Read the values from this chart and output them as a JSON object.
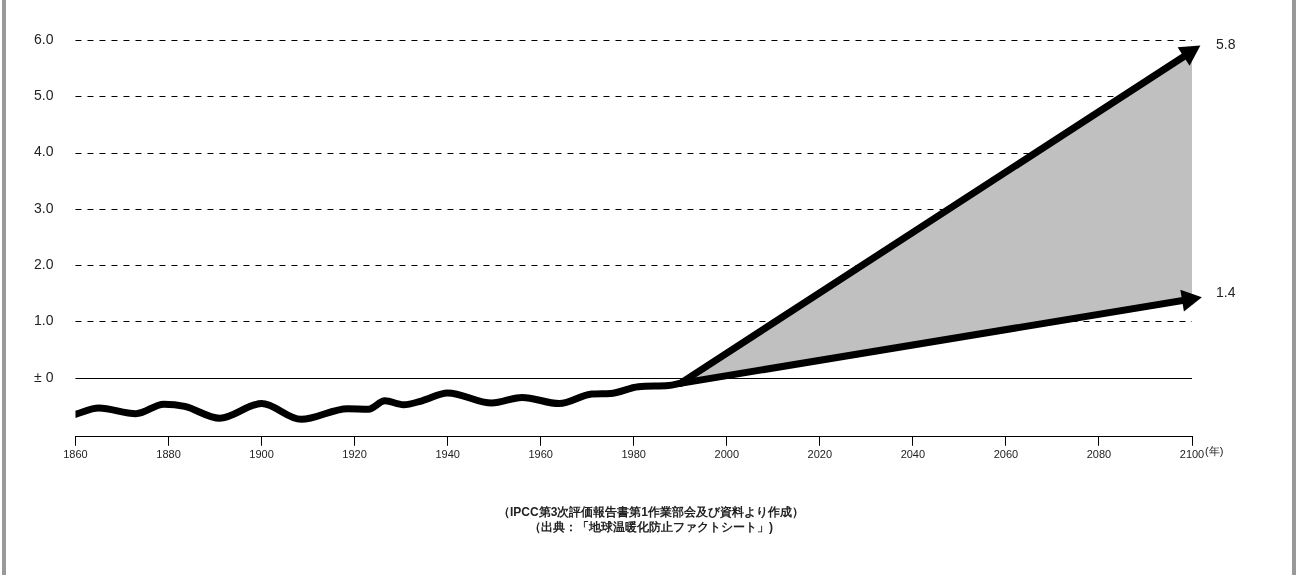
{
  "chart_data": {
    "type": "line",
    "annotations": [
      "（IPCC第3次評価報告書第1作業部会及び資料より作成）",
      "（出典：「地球温暖化防止ファクトシート」)"
    ],
    "xlabel": "(年)",
    "xlim": [
      1860,
      2100
    ],
    "xticks": [
      1860,
      1880,
      1900,
      1920,
      1940,
      1960,
      1980,
      2000,
      2020,
      2040,
      2060,
      2080,
      2100
    ],
    "ylim": [
      -1.05,
      6.0
    ],
    "yticks": [
      {
        "value": 0,
        "label": "± 0"
      },
      {
        "value": 1,
        "label": "1.0"
      },
      {
        "value": 2,
        "label": "2.0"
      },
      {
        "value": 3,
        "label": "3.0"
      },
      {
        "value": 4,
        "label": "4.0"
      },
      {
        "value": 5,
        "label": "5.0"
      },
      {
        "value": 6,
        "label": "6.0"
      }
    ],
    "grid": "y",
    "legend": false,
    "ref_lines": [
      {
        "axis": "y",
        "value": 0,
        "line_style": "solid",
        "color": "#000000"
      }
    ],
    "series": [
      {
        "color": "#000000",
        "x": [
          1860,
          1865,
          1873,
          1879,
          1883.5,
          1891,
          1900,
          1908.5,
          1918.5,
          1923,
          1926.5,
          1930.5,
          1934.5,
          1940,
          1949.5,
          1956,
          1964,
          1971,
          1975,
          1981,
          1987.5,
          1990
        ],
        "values": [
          -0.65,
          -0.54,
          -0.64,
          -0.47,
          -0.51,
          -0.72,
          -0.46,
          -0.74,
          -0.55,
          -0.56,
          -0.41,
          -0.48,
          -0.41,
          -0.27,
          -0.45,
          -0.35,
          -0.46,
          -0.29,
          -0.28,
          -0.16,
          -0.14,
          -0.1
        ]
      },
      {
        "color": "#000000",
        "x": [
          1990,
          2100
        ],
        "values": [
          -0.1,
          5.8
        ],
        "value_labels": [
          null,
          "5.8"
        ]
      },
      {
        "color": "#000000",
        "x": [
          1990,
          2100
        ],
        "values": [
          -0.1,
          1.4
        ],
        "value_labels": [
          null,
          "1.4"
        ],
        "lower": [
          -0.1,
          1.4
        ],
        "upper": [
          -0.1,
          5.8
        ]
      }
    ]
  }
}
